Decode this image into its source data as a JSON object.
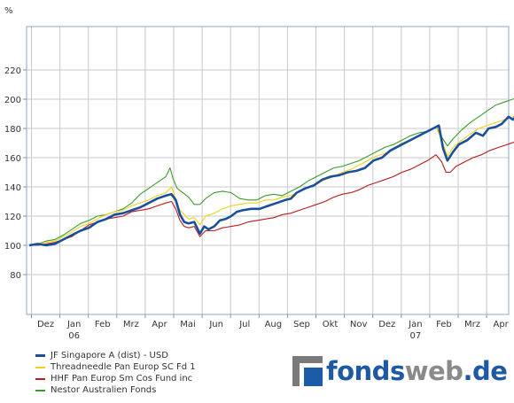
{
  "chart_data": {
    "type": "line",
    "ylabel": "%",
    "ylim": [
      60,
      232
    ],
    "yticks": [
      80,
      100,
      120,
      140,
      160,
      180,
      200,
      220
    ],
    "x_months": [
      {
        "label": "Dez",
        "sub": ""
      },
      {
        "label": "Jan",
        "sub": "06"
      },
      {
        "label": "Feb",
        "sub": ""
      },
      {
        "label": "Mrz",
        "sub": ""
      },
      {
        "label": "Apr",
        "sub": ""
      },
      {
        "label": "Mai",
        "sub": ""
      },
      {
        "label": "Jun",
        "sub": ""
      },
      {
        "label": "Jul",
        "sub": ""
      },
      {
        "label": "Aug",
        "sub": ""
      },
      {
        "label": "Sep",
        "sub": ""
      },
      {
        "label": "Okt",
        "sub": ""
      },
      {
        "label": "Nov",
        "sub": ""
      },
      {
        "label": "Dez",
        "sub": ""
      },
      {
        "label": "Jan",
        "sub": "07"
      },
      {
        "label": "Feb",
        "sub": ""
      },
      {
        "label": "Mrz",
        "sub": ""
      },
      {
        "label": "Apr",
        "sub": ""
      },
      {
        "label": "Mai",
        "sub": ""
      }
    ],
    "x_range": [
      0,
      17.35
    ],
    "grid": true,
    "legend_position": "bottom-left",
    "series": [
      {
        "name": "JF Singapore A (dist) - USD",
        "color": "#1a4f9c",
        "width": 2.6,
        "points": [
          [
            0,
            100
          ],
          [
            0.3,
            101
          ],
          [
            0.6,
            100
          ],
          [
            0.9,
            101
          ],
          [
            1.2,
            104
          ],
          [
            1.5,
            107
          ],
          [
            1.8,
            110
          ],
          [
            2.1,
            112
          ],
          [
            2.4,
            116
          ],
          [
            2.7,
            118
          ],
          [
            3.0,
            121
          ],
          [
            3.3,
            122
          ],
          [
            3.6,
            124
          ],
          [
            3.9,
            126
          ],
          [
            4.2,
            129
          ],
          [
            4.5,
            132
          ],
          [
            4.8,
            134
          ],
          [
            5.0,
            135
          ],
          [
            5.15,
            131
          ],
          [
            5.3,
            121
          ],
          [
            5.45,
            116
          ],
          [
            5.6,
            115
          ],
          [
            5.8,
            116
          ],
          [
            6.0,
            108
          ],
          [
            6.15,
            113
          ],
          [
            6.3,
            111
          ],
          [
            6.5,
            113
          ],
          [
            6.7,
            117
          ],
          [
            6.9,
            118
          ],
          [
            7.1,
            120
          ],
          [
            7.3,
            123
          ],
          [
            7.5,
            124
          ],
          [
            7.8,
            125
          ],
          [
            8.1,
            125
          ],
          [
            8.4,
            127
          ],
          [
            8.7,
            129
          ],
          [
            9.0,
            131
          ],
          [
            9.2,
            132
          ],
          [
            9.4,
            136
          ],
          [
            9.7,
            139
          ],
          [
            10.0,
            141
          ],
          [
            10.3,
            145
          ],
          [
            10.6,
            147
          ],
          [
            10.9,
            148
          ],
          [
            11.2,
            150
          ],
          [
            11.5,
            151
          ],
          [
            11.8,
            153
          ],
          [
            12.1,
            158
          ],
          [
            12.4,
            160
          ],
          [
            12.7,
            165
          ],
          [
            13.0,
            168
          ],
          [
            13.3,
            171
          ],
          [
            13.6,
            174
          ],
          [
            13.9,
            177
          ],
          [
            14.2,
            180
          ],
          [
            14.4,
            182
          ],
          [
            14.55,
            166
          ],
          [
            14.7,
            158
          ],
          [
            14.9,
            164
          ],
          [
            15.1,
            169
          ],
          [
            15.4,
            172
          ],
          [
            15.7,
            177
          ],
          [
            15.95,
            175
          ],
          [
            16.15,
            180
          ],
          [
            16.4,
            181
          ],
          [
            16.6,
            183
          ],
          [
            16.85,
            188
          ],
          [
            17.0,
            186
          ],
          [
            17.2,
            190
          ],
          [
            17.35,
            188
          ]
        ]
      },
      {
        "name": "Threadneedle Pan Europ SC Fd 1",
        "color": "#f0d21e",
        "width": 1.1,
        "points": [
          [
            0,
            100
          ],
          [
            0.3,
            101
          ],
          [
            0.6,
            102
          ],
          [
            0.9,
            103
          ],
          [
            1.2,
            106
          ],
          [
            1.5,
            109
          ],
          [
            1.8,
            113
          ],
          [
            2.1,
            115
          ],
          [
            2.4,
            118
          ],
          [
            2.7,
            121
          ],
          [
            3.0,
            123
          ],
          [
            3.3,
            124
          ],
          [
            3.6,
            127
          ],
          [
            3.9,
            129
          ],
          [
            4.2,
            131
          ],
          [
            4.5,
            134
          ],
          [
            4.8,
            136
          ],
          [
            5.0,
            140
          ],
          [
            5.15,
            132
          ],
          [
            5.3,
            124
          ],
          [
            5.45,
            121
          ],
          [
            5.6,
            118
          ],
          [
            5.8,
            119
          ],
          [
            6.0,
            114
          ],
          [
            6.2,
            120
          ],
          [
            6.5,
            122
          ],
          [
            6.8,
            125
          ],
          [
            7.1,
            127
          ],
          [
            7.4,
            128
          ],
          [
            7.7,
            129
          ],
          [
            8.0,
            129
          ],
          [
            8.3,
            131
          ],
          [
            8.6,
            131
          ],
          [
            8.9,
            133
          ],
          [
            9.2,
            134
          ],
          [
            9.5,
            137
          ],
          [
            9.8,
            140
          ],
          [
            10.1,
            142
          ],
          [
            10.4,
            145
          ],
          [
            10.7,
            147
          ],
          [
            11.0,
            150
          ],
          [
            11.3,
            152
          ],
          [
            11.6,
            155
          ],
          [
            11.9,
            158
          ],
          [
            12.2,
            161
          ],
          [
            12.5,
            163
          ],
          [
            12.8,
            166
          ],
          [
            13.1,
            170
          ],
          [
            13.4,
            172
          ],
          [
            13.7,
            175
          ],
          [
            14.0,
            178
          ],
          [
            14.3,
            181
          ],
          [
            14.5,
            172
          ],
          [
            14.7,
            161
          ],
          [
            14.9,
            167
          ],
          [
            15.2,
            172
          ],
          [
            15.5,
            176
          ],
          [
            15.8,
            180
          ],
          [
            16.1,
            182
          ],
          [
            16.4,
            184
          ],
          [
            16.7,
            186
          ],
          [
            17.0,
            188
          ],
          [
            17.35,
            190
          ]
        ]
      },
      {
        "name": "HHF Pan Europ Sm Cos Fund inc",
        "color": "#b81c1c",
        "width": 1.1,
        "points": [
          [
            0,
            100
          ],
          [
            0.3,
            100
          ],
          [
            0.6,
            101
          ],
          [
            0.9,
            102
          ],
          [
            1.2,
            104
          ],
          [
            1.5,
            106
          ],
          [
            1.8,
            110
          ],
          [
            2.1,
            114
          ],
          [
            2.4,
            116
          ],
          [
            2.7,
            118
          ],
          [
            3.0,
            119
          ],
          [
            3.3,
            120
          ],
          [
            3.6,
            123
          ],
          [
            3.9,
            124
          ],
          [
            4.2,
            125
          ],
          [
            4.5,
            127
          ],
          [
            4.8,
            129
          ],
          [
            5.0,
            130
          ],
          [
            5.15,
            125
          ],
          [
            5.3,
            117
          ],
          [
            5.45,
            113
          ],
          [
            5.6,
            112
          ],
          [
            5.8,
            113
          ],
          [
            6.0,
            106
          ],
          [
            6.2,
            110
          ],
          [
            6.5,
            110
          ],
          [
            6.8,
            112
          ],
          [
            7.1,
            113
          ],
          [
            7.4,
            114
          ],
          [
            7.7,
            116
          ],
          [
            8.0,
            117
          ],
          [
            8.3,
            118
          ],
          [
            8.6,
            119
          ],
          [
            8.9,
            121
          ],
          [
            9.2,
            122
          ],
          [
            9.5,
            124
          ],
          [
            9.8,
            126
          ],
          [
            10.1,
            128
          ],
          [
            10.4,
            130
          ],
          [
            10.7,
            133
          ],
          [
            11.0,
            135
          ],
          [
            11.3,
            136
          ],
          [
            11.6,
            138
          ],
          [
            11.9,
            141
          ],
          [
            12.2,
            143
          ],
          [
            12.5,
            145
          ],
          [
            12.8,
            147
          ],
          [
            13.1,
            150
          ],
          [
            13.4,
            152
          ],
          [
            13.7,
            155
          ],
          [
            14.0,
            158
          ],
          [
            14.3,
            162
          ],
          [
            14.5,
            157
          ],
          [
            14.65,
            150
          ],
          [
            14.8,
            150
          ],
          [
            15.0,
            154
          ],
          [
            15.3,
            157
          ],
          [
            15.6,
            160
          ],
          [
            15.9,
            162
          ],
          [
            16.2,
            165
          ],
          [
            16.5,
            167
          ],
          [
            16.8,
            169
          ],
          [
            17.1,
            171
          ],
          [
            17.35,
            173
          ]
        ]
      },
      {
        "name": "Nestor Australien Fonds",
        "color": "#3c9c2c",
        "width": 1.1,
        "points": [
          [
            0,
            100
          ],
          [
            0.3,
            101
          ],
          [
            0.6,
            103
          ],
          [
            0.9,
            104
          ],
          [
            1.2,
            107
          ],
          [
            1.5,
            111
          ],
          [
            1.8,
            115
          ],
          [
            2.1,
            117
          ],
          [
            2.4,
            120
          ],
          [
            2.7,
            121
          ],
          [
            3.0,
            123
          ],
          [
            3.3,
            125
          ],
          [
            3.6,
            129
          ],
          [
            3.9,
            135
          ],
          [
            4.2,
            139
          ],
          [
            4.5,
            143
          ],
          [
            4.8,
            147
          ],
          [
            4.95,
            153
          ],
          [
            5.05,
            146
          ],
          [
            5.2,
            139
          ],
          [
            5.4,
            136
          ],
          [
            5.6,
            133
          ],
          [
            5.8,
            128
          ],
          [
            6.0,
            128
          ],
          [
            6.2,
            132
          ],
          [
            6.5,
            136
          ],
          [
            6.8,
            137
          ],
          [
            7.1,
            136
          ],
          [
            7.4,
            132
          ],
          [
            7.7,
            131
          ],
          [
            8.0,
            131
          ],
          [
            8.3,
            134
          ],
          [
            8.6,
            135
          ],
          [
            8.9,
            134
          ],
          [
            9.2,
            137
          ],
          [
            9.5,
            140
          ],
          [
            9.8,
            144
          ],
          [
            10.1,
            147
          ],
          [
            10.4,
            150
          ],
          [
            10.7,
            153
          ],
          [
            11.0,
            154
          ],
          [
            11.3,
            156
          ],
          [
            11.6,
            158
          ],
          [
            11.9,
            161
          ],
          [
            12.2,
            164
          ],
          [
            12.5,
            167
          ],
          [
            12.8,
            169
          ],
          [
            13.1,
            172
          ],
          [
            13.4,
            175
          ],
          [
            13.7,
            177
          ],
          [
            14.0,
            178
          ],
          [
            14.3,
            181
          ],
          [
            14.5,
            174
          ],
          [
            14.7,
            168
          ],
          [
            14.9,
            173
          ],
          [
            15.2,
            179
          ],
          [
            15.5,
            184
          ],
          [
            15.8,
            188
          ],
          [
            16.1,
            192
          ],
          [
            16.4,
            196
          ],
          [
            16.7,
            198
          ],
          [
            17.0,
            200
          ],
          [
            17.2,
            202
          ],
          [
            17.35,
            200
          ]
        ]
      }
    ]
  },
  "brand": {
    "part1": "fonds",
    "part2": "web",
    "part3": ".de"
  }
}
